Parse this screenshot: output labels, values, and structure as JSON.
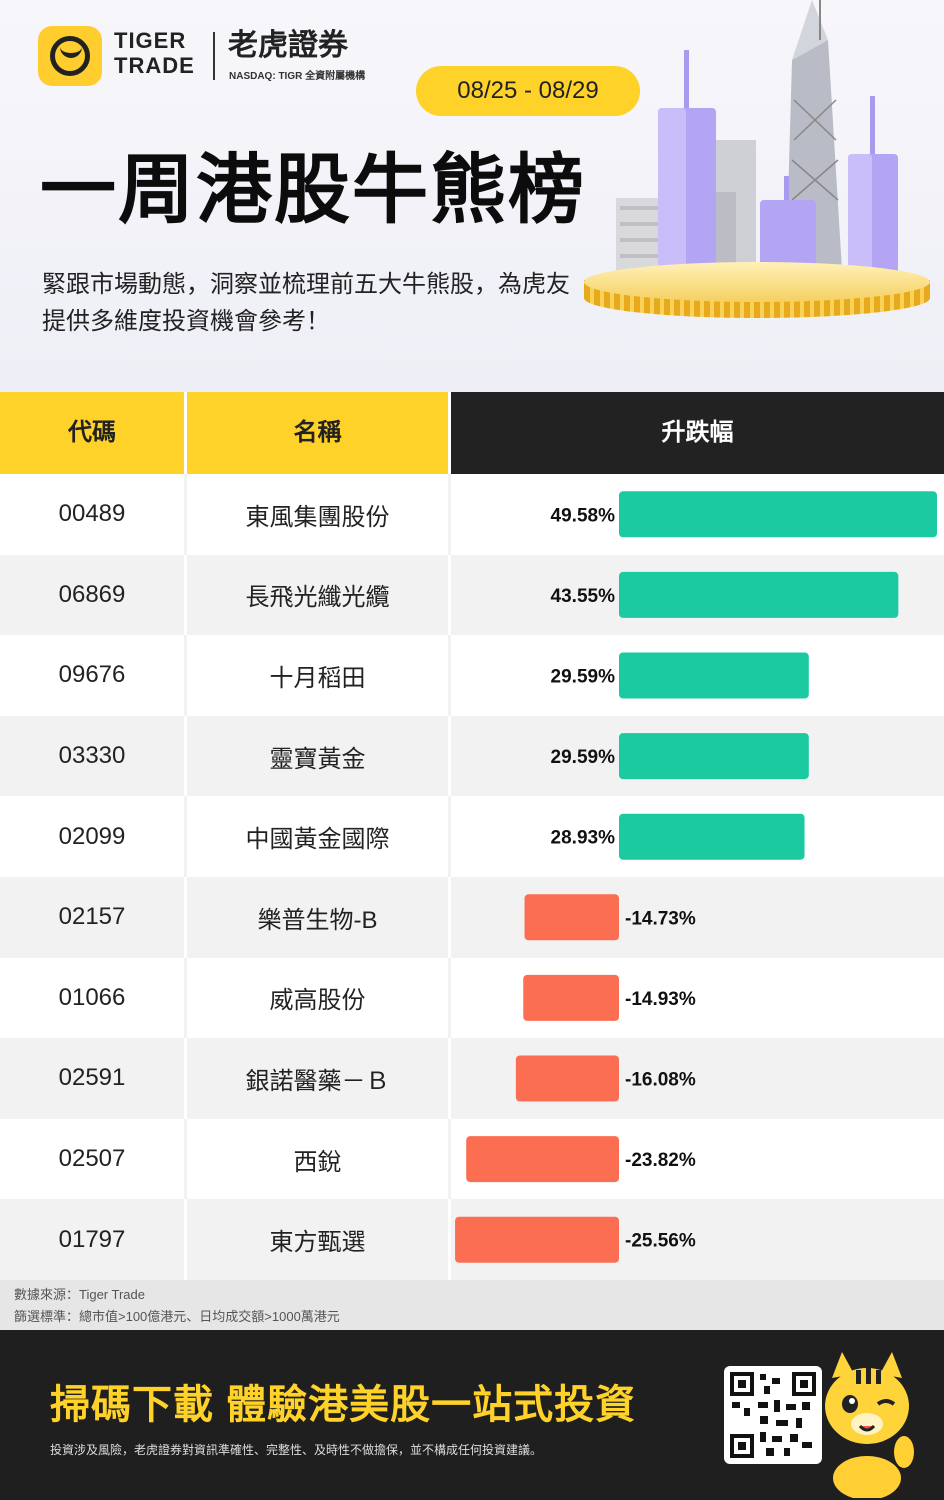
{
  "brand": {
    "en_line1": "TIGER",
    "en_line2": "TRADE",
    "cn": "老虎證券",
    "sub": "NASDAQ: TIGR 全資附屬機構"
  },
  "date_range": "08/25 - 08/29",
  "title": "一周港股牛熊榜",
  "subtitle": "緊跟市場動態，洞察並梳理前五大牛熊股，為虎友提供多維度投資機會參考！",
  "table": {
    "headers": [
      "代碼",
      "名稱",
      "升跌幅"
    ]
  },
  "chart_data": {
    "type": "table",
    "columns": [
      "代碼",
      "名稱",
      "升跌幅"
    ],
    "rows": [
      {
        "code": "00489",
        "name": "東風集團股份",
        "change": 49.58,
        "label": "49.58%"
      },
      {
        "code": "06869",
        "name": "長飛光纖光纜",
        "change": 43.55,
        "label": "43.55%"
      },
      {
        "code": "09676",
        "name": "十月稻田",
        "change": 29.59,
        "label": "29.59%"
      },
      {
        "code": "03330",
        "name": "靈寶黃金",
        "change": 29.59,
        "label": "29.59%"
      },
      {
        "code": "02099",
        "name": "中國黃金國際",
        "change": 28.93,
        "label": "28.93%"
      },
      {
        "code": "02157",
        "name": "樂普生物-B",
        "change": -14.73,
        "label": "-14.73%"
      },
      {
        "code": "01066",
        "name": "威高股份",
        "change": -14.93,
        "label": "-14.93%"
      },
      {
        "code": "02591",
        "name": "銀諾醫藥－Ｂ",
        "change": -16.08,
        "label": "-16.08%"
      },
      {
        "code": "02507",
        "name": "西銳",
        "change": -23.82,
        "label": "-23.82%"
      },
      {
        "code": "01797",
        "name": "東方甄選",
        "change": -25.56,
        "label": "-25.56%"
      }
    ],
    "colors": {
      "up": "#1bcaa0",
      "down": "#fb6e52"
    }
  },
  "source": {
    "line1": "數據來源：Tiger Trade",
    "line2": "篩選標準：總市值>100億港元、日均成交額>1000萬港元"
  },
  "footer": {
    "cta": "掃碼下載 體驗港美股一站式投資",
    "disclaimer": "投資涉及風險，老虎證券對資訊準確性、完整性、及時性不做擔保，並不構成任何投資建議。"
  },
  "icons": {
    "logo": "tiger-logo-icon",
    "qr": "qr-code-icon",
    "mascot": "tiger-mascot-icon"
  }
}
